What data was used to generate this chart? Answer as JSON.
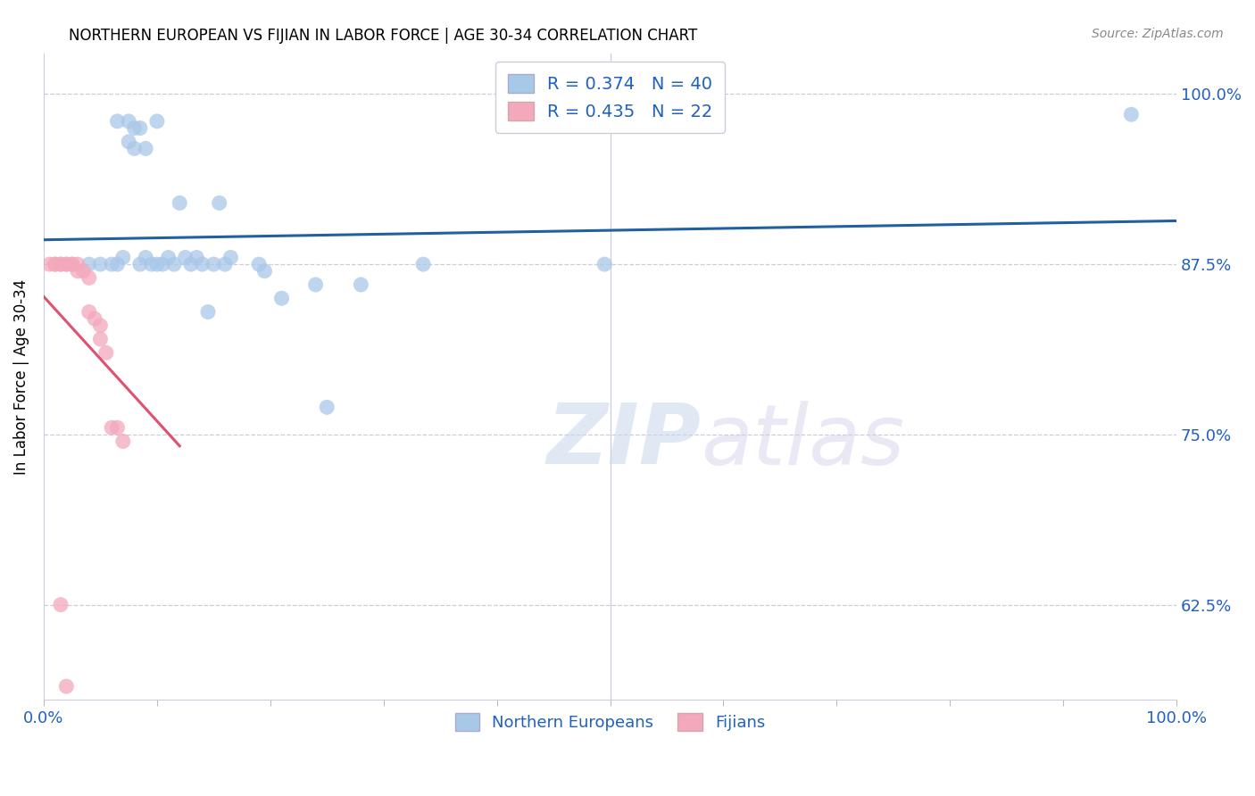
{
  "title": "NORTHERN EUROPEAN VS FIJIAN IN LABOR FORCE | AGE 30-34 CORRELATION CHART",
  "source": "Source: ZipAtlas.com",
  "ylabel": "In Labor Force | Age 30-34",
  "xlim": [
    0.0,
    1.0
  ],
  "ylim": [
    0.555,
    1.03
  ],
  "yticks": [
    0.625,
    0.75,
    0.875,
    1.0
  ],
  "ytick_labels": [
    "62.5%",
    "75.0%",
    "87.5%",
    "100.0%"
  ],
  "xticks": [
    0.0,
    0.1,
    0.2,
    0.3,
    0.4,
    0.5,
    0.6,
    0.7,
    0.8,
    0.9,
    1.0
  ],
  "blue_R": 0.374,
  "blue_N": 40,
  "pink_R": 0.435,
  "pink_N": 22,
  "blue_color": "#a8c8e8",
  "pink_color": "#f4a8bc",
  "blue_line_color": "#2060a0",
  "pink_line_color": "#e05070",
  "watermark_zip": "ZIP",
  "watermark_atlas": "atlas",
  "blue_x": [
    0.02,
    0.04,
    0.05,
    0.06,
    0.065,
    0.065,
    0.07,
    0.075,
    0.075,
    0.08,
    0.08,
    0.085,
    0.085,
    0.09,
    0.09,
    0.095,
    0.1,
    0.1,
    0.105,
    0.11,
    0.115,
    0.12,
    0.125,
    0.13,
    0.135,
    0.14,
    0.145,
    0.15,
    0.155,
    0.16,
    0.165,
    0.19,
    0.195,
    0.21,
    0.24,
    0.25,
    0.28,
    0.335,
    0.495,
    0.96
  ],
  "blue_y": [
    0.875,
    0.875,
    0.875,
    0.875,
    0.875,
    0.98,
    0.88,
    0.98,
    0.965,
    0.975,
    0.96,
    0.975,
    0.875,
    0.88,
    0.96,
    0.875,
    0.98,
    0.875,
    0.875,
    0.88,
    0.875,
    0.92,
    0.88,
    0.875,
    0.88,
    0.875,
    0.84,
    0.875,
    0.92,
    0.875,
    0.88,
    0.875,
    0.87,
    0.85,
    0.86,
    0.77,
    0.86,
    0.875,
    0.875,
    0.985
  ],
  "pink_x": [
    0.005,
    0.01,
    0.01,
    0.015,
    0.015,
    0.02,
    0.025,
    0.025,
    0.03,
    0.03,
    0.035,
    0.04,
    0.04,
    0.045,
    0.05,
    0.05,
    0.055,
    0.06,
    0.065,
    0.07,
    0.015,
    0.02
  ],
  "pink_y": [
    0.875,
    0.875,
    0.875,
    0.875,
    0.875,
    0.875,
    0.875,
    0.875,
    0.875,
    0.87,
    0.87,
    0.865,
    0.84,
    0.835,
    0.83,
    0.82,
    0.81,
    0.755,
    0.755,
    0.745,
    0.625,
    0.565
  ]
}
